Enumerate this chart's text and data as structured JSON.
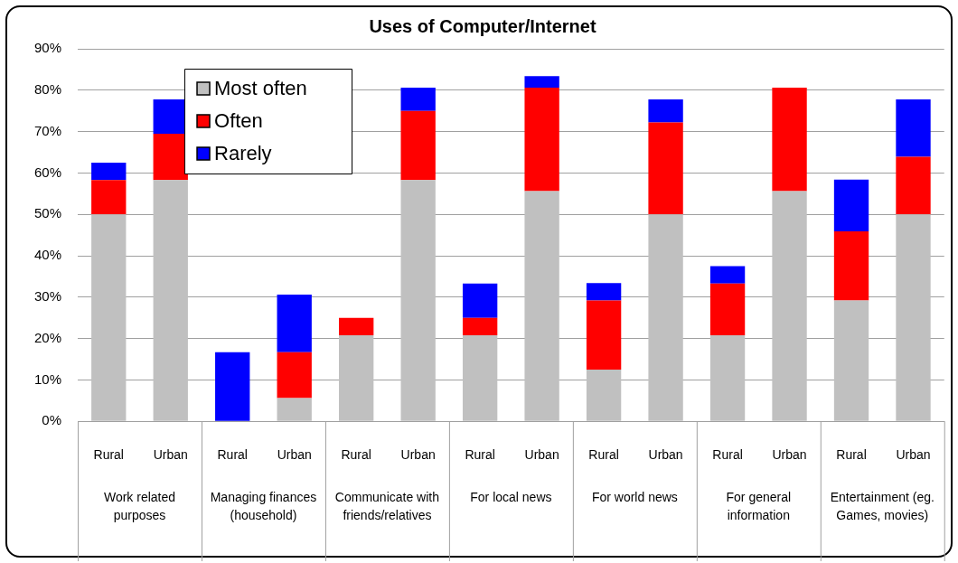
{
  "chart_data": {
    "type": "bar",
    "title": "Uses of Computer/Internet",
    "categories": [
      "Rural",
      "Urban",
      "Rural",
      "Urban",
      "Rural",
      "Urban",
      "Rural",
      "Urban",
      "Rural",
      "Urban",
      "Rural",
      "Urban",
      "Rural",
      "Urban"
    ],
    "annotations": [
      "Work related purposes",
      "Managing finances (household)",
      "Communicate with friends/relatives",
      "For local news",
      "For world news",
      "For general information",
      "Entertainment (eg. Games, movies)"
    ],
    "series": [
      {
        "name": "Most often",
        "color": "#c0c0c0",
        "values": [
          50,
          58.3,
          0,
          5.6,
          20.8,
          58.3,
          20.8,
          55.6,
          12.5,
          50,
          20.8,
          55.6,
          29.2,
          50
        ]
      },
      {
        "name": "Often",
        "color": "#ff0000",
        "values": [
          8.3,
          11.2,
          0,
          11.1,
          4.2,
          16.7,
          4.2,
          25,
          16.7,
          22.2,
          12.5,
          25,
          16.7,
          13.9
        ]
      },
      {
        "name": "Rarely",
        "color": "#0000ff",
        "values": [
          4.2,
          8.3,
          16.7,
          13.9,
          0,
          5.6,
          8.3,
          2.8,
          4.2,
          5.6,
          4.2,
          0,
          12.5,
          13.9
        ]
      }
    ],
    "stacked": true,
    "ylim": [
      0,
      90
    ],
    "yticks": [
      {
        "value": 0,
        "label": "0%"
      },
      {
        "value": 10,
        "label": "10%"
      },
      {
        "value": 20,
        "label": "20%"
      },
      {
        "value": 30,
        "label": "30%"
      },
      {
        "value": 40,
        "label": "40%"
      },
      {
        "value": 50,
        "label": "50%"
      },
      {
        "value": 60,
        "label": "60%"
      },
      {
        "value": 70,
        "label": "70%"
      },
      {
        "value": 80,
        "label": "80%"
      },
      {
        "value": 90,
        "label": "90%"
      }
    ],
    "grid": "y",
    "legend": "top left"
  }
}
